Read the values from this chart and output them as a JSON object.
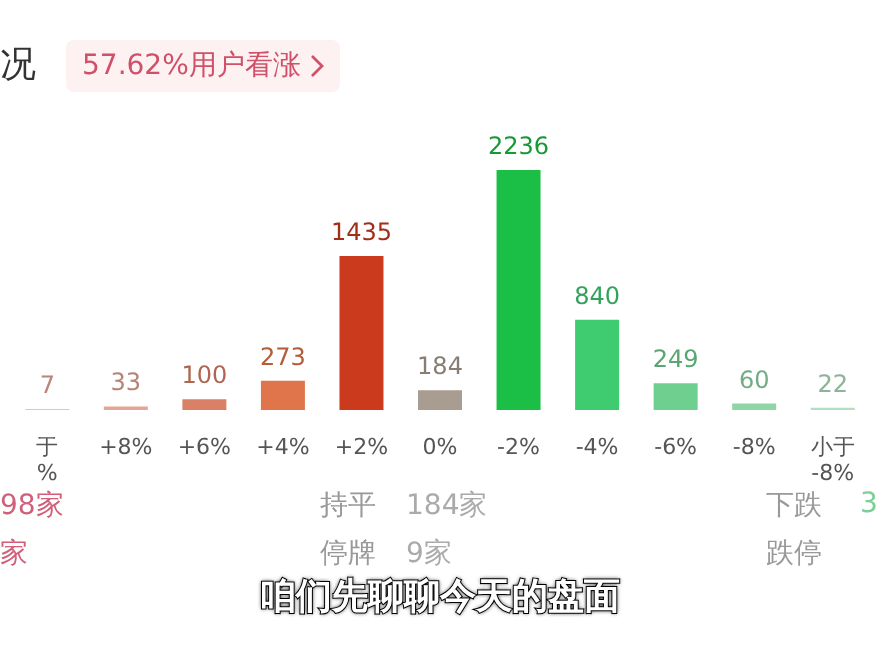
{
  "chart_data": {
    "type": "bar",
    "title": "况",
    "subtitle": "57.62%用户看涨",
    "categories": [
      "于\n%",
      "+8%",
      "+6%",
      "+4%",
      "+2%",
      "0%",
      "-2%",
      "-4%",
      "-6%",
      "-8%",
      "小于\n-8%"
    ],
    "values": [
      7,
      33,
      100,
      273,
      1435,
      184,
      2236,
      840,
      249,
      60,
      22
    ],
    "colors": [
      "#e8a898",
      "#e3a595",
      "#d98066",
      "#e0744a",
      "#cc3a1e",
      "#a89d90",
      "#1cbf45",
      "#3fcc70",
      "#6fcf8e",
      "#8fd6a6",
      "#b0e0c0"
    ],
    "data_labels": true,
    "annotations": [
      "98家",
      "家",
      "持平",
      "184家",
      "停牌",
      "9家",
      "下跌",
      "3",
      "跌停",
      "咱们先聊聊今天的盘面"
    ]
  }
}
